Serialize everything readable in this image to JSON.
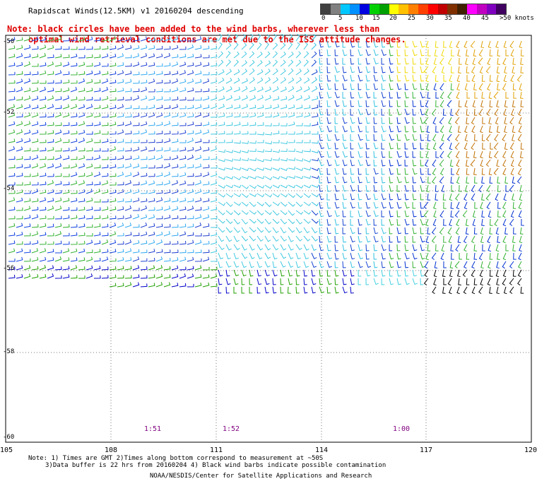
{
  "header": {
    "title": "Rapidscat Winds(12.5KM) v1 20160204 descending",
    "note_line1": "Note: black circles have been added to the wind barbs, wherever less than",
    "note_line2": "optimal wind retrieval conditions are met due to the ISS attitude changes."
  },
  "colorbar": {
    "colors": [
      "#404040",
      "#808080",
      "#00c8ff",
      "#0090ff",
      "#0000e0",
      "#00d000",
      "#00a000",
      "#ffff00",
      "#ffc000",
      "#ff8000",
      "#ff4000",
      "#ff0000",
      "#c00000",
      "#803000",
      "#402000",
      "#ff00ff",
      "#c000c0",
      "#8000c0",
      "#400060"
    ],
    "labels": [
      "0",
      "5",
      "10",
      "15",
      "20",
      "25",
      "30",
      "35",
      "40",
      "45",
      ">50 knots"
    ]
  },
  "axes": {
    "lon_labels": [
      "105",
      "108",
      "111",
      "114",
      "117",
      "120"
    ],
    "lat_labels": [
      "-50",
      "-52",
      "-54",
      "-56",
      "-58",
      "-60"
    ]
  },
  "times": [
    "1:51",
    "1:52",
    "1:00"
  ],
  "footer": {
    "line1": "Note: 1) Times are GMT 2)Times along bottom correspond to measurement at ~50S",
    "line2": "3)Data buffer is 22 hrs from 20160204 4) Black wind barbs indicate possible contamination",
    "line3": "NOAA/NESDIS/Center for Satellite Applications and Research"
  }
}
